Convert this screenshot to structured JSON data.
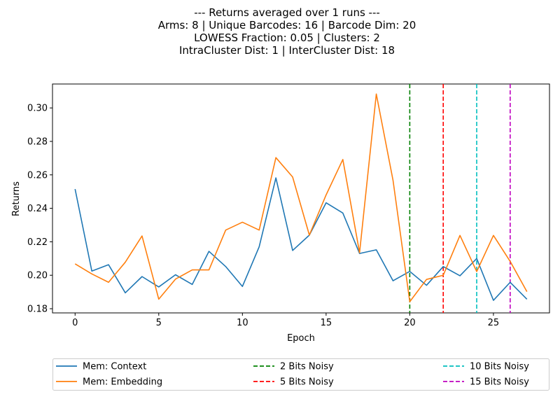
{
  "chart_data": {
    "type": "line",
    "title_lines": [
      "--- Returns averaged over 1 runs ---",
      "Arms: 8 | Unique Barcodes: 16 | Barcode Dim: 20",
      "LOWESS Fraction: 0.05 | Clusters: 2",
      "IntraCluster Dist: 1 | InterCluster Dist: 18"
    ],
    "xlabel": "Epoch",
    "ylabel": "Returns",
    "xlim": [
      -1.35,
      28.35
    ],
    "ylim": [
      0.1775,
      0.3143
    ],
    "xticks": [
      0,
      5,
      10,
      15,
      20,
      25
    ],
    "yticks": [
      0.18,
      0.2,
      0.22,
      0.24,
      0.26,
      0.28,
      0.3
    ],
    "x": [
      0,
      1,
      2,
      3,
      4,
      5,
      6,
      7,
      8,
      9,
      10,
      11,
      12,
      13,
      14,
      15,
      16,
      17,
      18,
      19,
      20,
      21,
      22,
      23,
      24,
      25,
      26,
      27
    ],
    "series": [
      {
        "name": "Mem: Context",
        "color": "#1f77b4",
        "values": [
          0.2515,
          0.2025,
          0.2063,
          0.1895,
          0.1992,
          0.193,
          0.2003,
          0.1945,
          0.2143,
          0.2052,
          0.1933,
          0.217,
          0.2582,
          0.2148,
          0.224,
          0.2433,
          0.2372,
          0.213,
          0.2152,
          0.1967,
          0.2023,
          0.194,
          0.2052,
          0.1997,
          0.21,
          0.185,
          0.1958,
          0.1857
        ]
      },
      {
        "name": "Mem: Embedding",
        "color": "#ff7f0e",
        "values": [
          0.2068,
          0.2008,
          0.1958,
          0.2078,
          0.2235,
          0.1857,
          0.1977,
          0.2032,
          0.2032,
          0.227,
          0.2317,
          0.227,
          0.2703,
          0.2587,
          0.224,
          0.248,
          0.2692,
          0.2135,
          0.3083,
          0.2567,
          0.1842,
          0.1975,
          0.2,
          0.2238,
          0.2022,
          0.2238,
          0.2083,
          0.1902
        ]
      }
    ],
    "vlines": [
      {
        "name": "2 Bits Noisy",
        "x": 20,
        "color": "#008000"
      },
      {
        "name": "5 Bits Noisy",
        "x": 22,
        "color": "#ff0000"
      },
      {
        "name": "10 Bits Noisy",
        "x": 24,
        "color": "#00bfbf"
      },
      {
        "name": "15 Bits Noisy",
        "x": 26,
        "color": "#bf00bf"
      }
    ],
    "grid": false,
    "legend_placement": "below-center"
  }
}
